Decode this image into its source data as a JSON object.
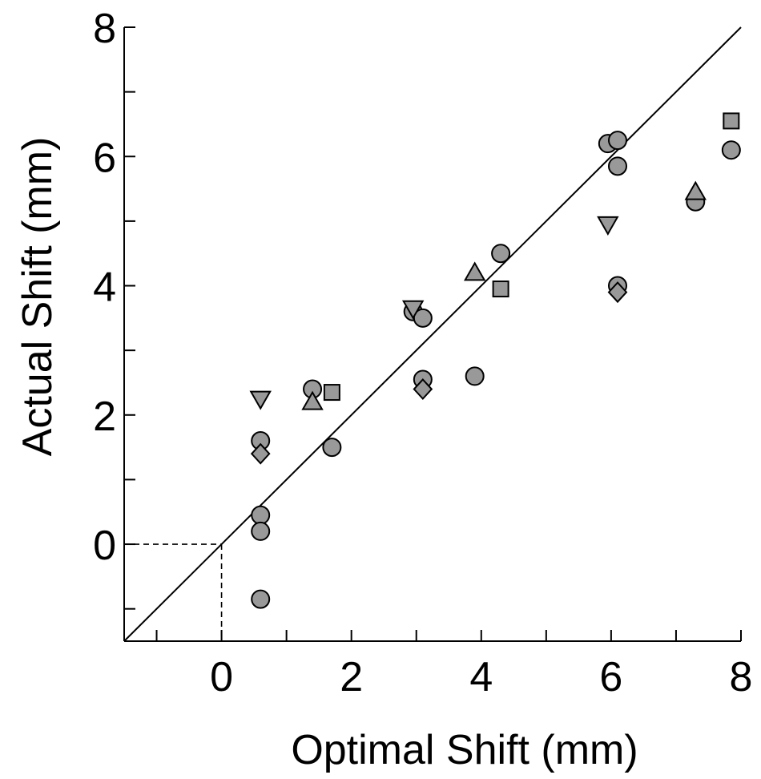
{
  "chart_data": {
    "type": "scatter",
    "title": "",
    "xlabel": "Optimal Shift (mm)",
    "ylabel": "Actual Shift (mm)",
    "xlim": [
      -1.5,
      8
    ],
    "ylim": [
      -1.5,
      8
    ],
    "xticks": [
      0,
      2,
      4,
      6,
      8
    ],
    "yticks": [
      0,
      2,
      4,
      6,
      8
    ],
    "xtick_labels": [
      "0",
      "2",
      "4",
      "6",
      "8"
    ],
    "ytick_labels": [
      "0",
      "2",
      "4",
      "6",
      "8"
    ],
    "minor_tick_step": 1,
    "grid": false,
    "reference_line": {
      "style": "solid",
      "x": [
        -1.5,
        8
      ],
      "y": [
        -1.5,
        8
      ]
    },
    "origin_guides": {
      "style": "dashed",
      "x": 0,
      "y": 0
    },
    "marker_fill": "#999999",
    "marker_stroke": "#000000",
    "series": [
      {
        "marker": "circle",
        "points": [
          {
            "x": 0.6,
            "y": 1.6
          },
          {
            "x": 0.6,
            "y": 0.45
          },
          {
            "x": 0.6,
            "y": 0.2
          },
          {
            "x": 0.6,
            "y": -0.85
          },
          {
            "x": 1.4,
            "y": 2.4
          },
          {
            "x": 1.7,
            "y": 1.5
          },
          {
            "x": 2.95,
            "y": 3.6
          },
          {
            "x": 3.1,
            "y": 3.5
          },
          {
            "x": 3.1,
            "y": 2.55
          },
          {
            "x": 3.9,
            "y": 2.6
          },
          {
            "x": 4.3,
            "y": 4.5
          },
          {
            "x": 5.95,
            "y": 6.2
          },
          {
            "x": 6.1,
            "y": 6.25
          },
          {
            "x": 6.1,
            "y": 5.85
          },
          {
            "x": 6.1,
            "y": 4.0
          },
          {
            "x": 7.3,
            "y": 5.3
          },
          {
            "x": 7.85,
            "y": 6.1
          }
        ]
      },
      {
        "marker": "square",
        "points": [
          {
            "x": 1.7,
            "y": 2.35
          },
          {
            "x": 4.3,
            "y": 3.95
          },
          {
            "x": 7.85,
            "y": 6.55
          }
        ]
      },
      {
        "marker": "triangle-up",
        "points": [
          {
            "x": 1.4,
            "y": 2.2
          },
          {
            "x": 3.9,
            "y": 4.2
          },
          {
            "x": 7.3,
            "y": 5.45
          }
        ]
      },
      {
        "marker": "triangle-down",
        "points": [
          {
            "x": 0.6,
            "y": 2.25
          },
          {
            "x": 2.95,
            "y": 3.65
          },
          {
            "x": 5.95,
            "y": 4.95
          }
        ]
      },
      {
        "marker": "diamond",
        "points": [
          {
            "x": 0.6,
            "y": 1.4
          },
          {
            "x": 3.1,
            "y": 2.4
          },
          {
            "x": 6.1,
            "y": 3.9
          }
        ]
      }
    ]
  }
}
